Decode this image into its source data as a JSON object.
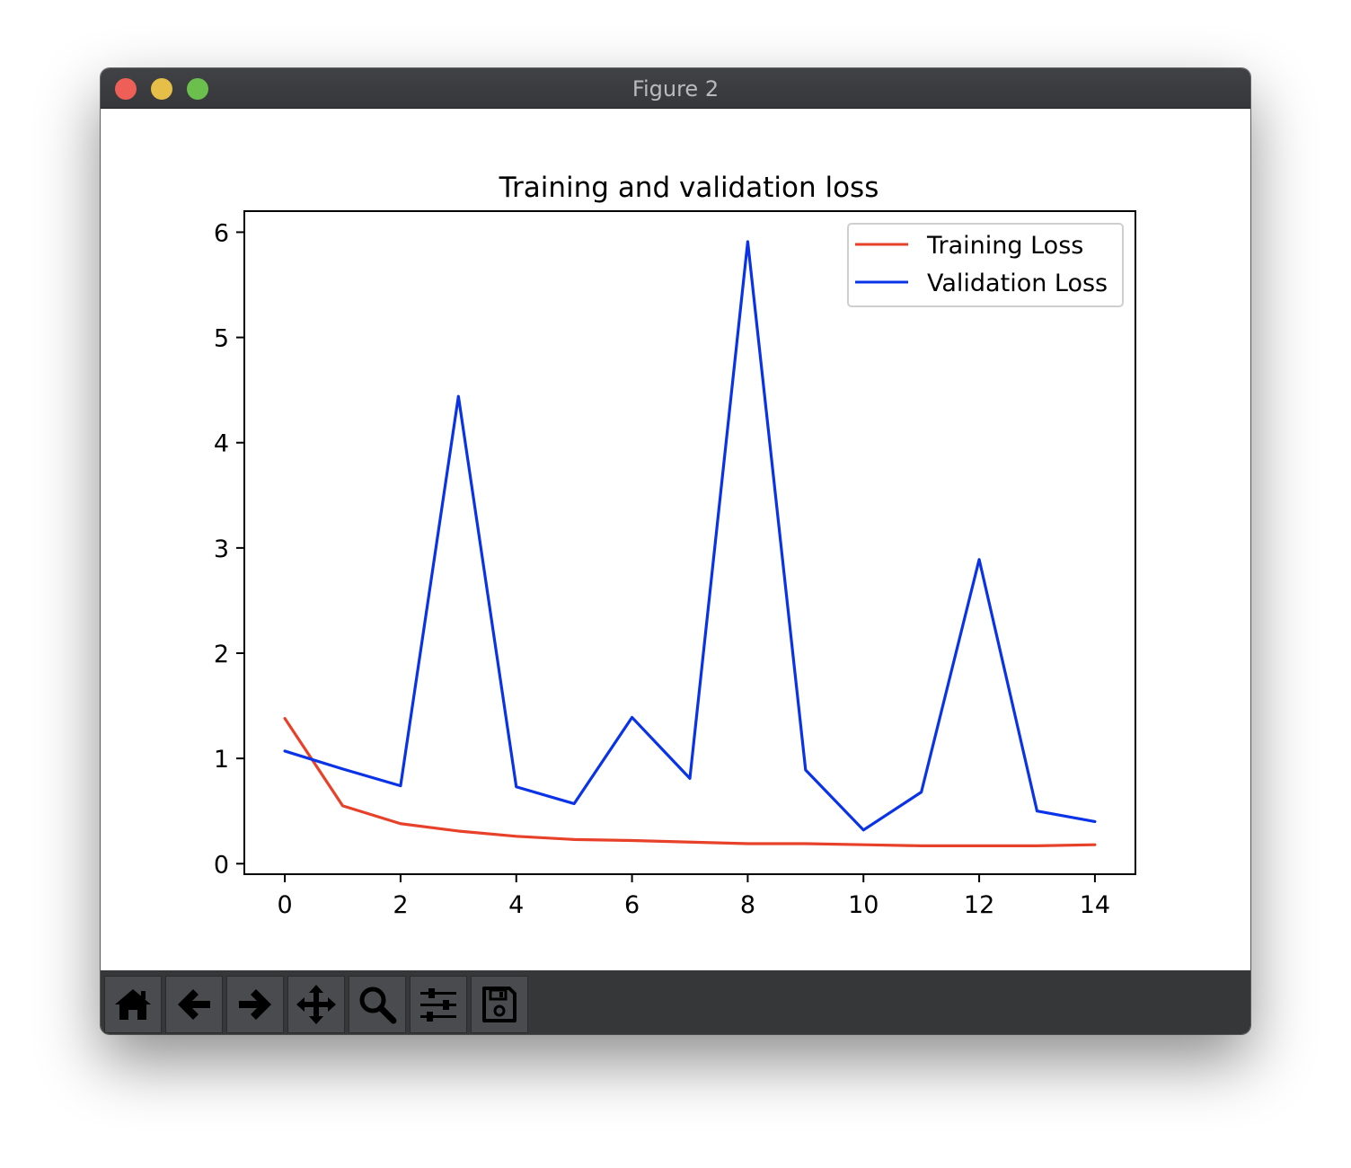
{
  "window": {
    "title": "Figure 2"
  },
  "chart_data": {
    "type": "line",
    "title": "Training and validation loss",
    "xlabel": "",
    "ylabel": "",
    "x": [
      0,
      1,
      2,
      3,
      4,
      5,
      6,
      7,
      8,
      9,
      10,
      11,
      12,
      13,
      14
    ],
    "xticks": [
      0,
      2,
      4,
      6,
      8,
      10,
      12,
      14
    ],
    "yticks": [
      0,
      1,
      2,
      3,
      4,
      5,
      6
    ],
    "xlim": [
      -0.7,
      14.7
    ],
    "ylim": [
      -0.1,
      6.2
    ],
    "grid": false,
    "legend_position": "upper right",
    "series": [
      {
        "name": "Training Loss",
        "color": "#e8412a",
        "values": [
          1.38,
          0.55,
          0.38,
          0.31,
          0.26,
          0.23,
          0.22,
          0.205,
          0.19,
          0.19,
          0.18,
          0.17,
          0.17,
          0.17,
          0.18
        ]
      },
      {
        "name": "Validation Loss",
        "color": "#0a33e8",
        "values": [
          1.07,
          0.9,
          0.74,
          4.44,
          0.73,
          0.57,
          1.39,
          0.81,
          5.91,
          0.89,
          0.32,
          0.68,
          2.89,
          0.5,
          0.4
        ]
      }
    ]
  },
  "toolbar": {
    "items": [
      {
        "name": "home",
        "icon": "home-icon"
      },
      {
        "name": "back",
        "icon": "arrow-left-icon"
      },
      {
        "name": "forward",
        "icon": "arrow-right-icon"
      },
      {
        "name": "pan",
        "icon": "move-icon"
      },
      {
        "name": "zoom",
        "icon": "magnifier-icon"
      },
      {
        "name": "configure-subplots",
        "icon": "sliders-icon"
      },
      {
        "name": "save",
        "icon": "floppy-disk-icon"
      }
    ]
  }
}
